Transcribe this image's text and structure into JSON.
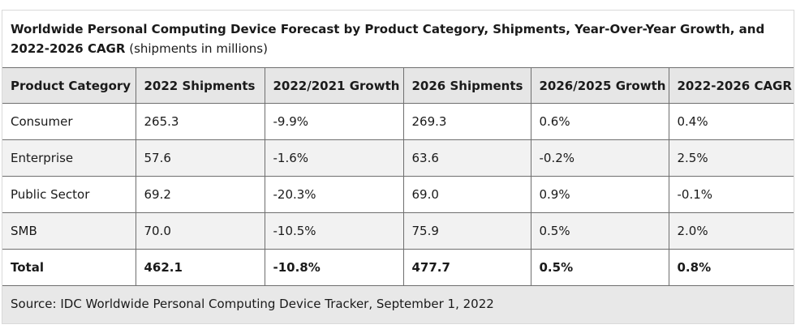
{
  "chart_data": {
    "type": "table",
    "title": "Worldwide Personal Computing Device Forecast by Product Category, Shipments, Year-Over-Year Growth, and 2022-2026 CAGR",
    "subtitle": "(shipments in millions)",
    "columns": [
      "Product Category",
      "2022 Shipments",
      "2022/2021 Growth",
      "2026 Shipments",
      "2026/2025 Growth",
      "2022-2026 CAGR"
    ],
    "rows": [
      [
        "Consumer",
        "265.3",
        "-9.9%",
        "269.3",
        "0.6%",
        "0.4%"
      ],
      [
        "Enterprise",
        "57.6",
        "-1.6%",
        "63.6",
        "-0.2%",
        "2.5%"
      ],
      [
        "Public Sector",
        "69.2",
        "-20.3%",
        "69.0",
        "0.9%",
        "-0.1%"
      ],
      [
        "SMB",
        "70.0",
        "-10.5%",
        "75.9",
        "0.5%",
        "2.0%"
      ]
    ],
    "total": [
      "Total",
      "462.1",
      "-10.8%",
      "477.7",
      "0.5%",
      "0.8%"
    ],
    "source": "Source: IDC Worldwide Personal Computing Device Tracker, September 1, 2022"
  },
  "colors": {
    "header_bg": "#e6e6e6",
    "alt_row_bg": "#f2f2f2",
    "source_bg": "#e8e8e8",
    "border": "#6f6f6f"
  }
}
